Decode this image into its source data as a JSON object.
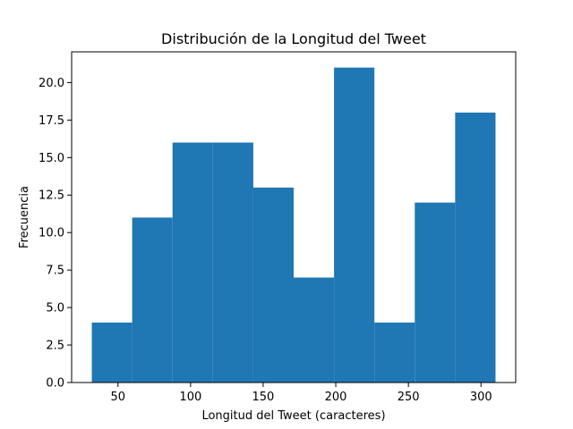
{
  "chart_data": {
    "type": "bar",
    "title": "Distribución de la Longitud del Tweet",
    "xlabel": "Longitud del Tweet (caracteres)",
    "ylabel": "Frecuencia",
    "bins": [
      {
        "start": 32.0,
        "end": 59.8,
        "count": 4
      },
      {
        "start": 59.8,
        "end": 87.6,
        "count": 11
      },
      {
        "start": 87.6,
        "end": 115.4,
        "count": 16
      },
      {
        "start": 115.4,
        "end": 143.2,
        "count": 16
      },
      {
        "start": 143.2,
        "end": 171.0,
        "count": 13
      },
      {
        "start": 171.0,
        "end": 198.8,
        "count": 7
      },
      {
        "start": 198.8,
        "end": 226.6,
        "count": 21
      },
      {
        "start": 226.6,
        "end": 254.4,
        "count": 4
      },
      {
        "start": 254.4,
        "end": 282.2,
        "count": 12
      },
      {
        "start": 282.2,
        "end": 310.0,
        "count": 18
      }
    ],
    "xlim": [
      18.1,
      323.9
    ],
    "ylim": [
      0,
      22.05
    ],
    "x_ticks": [
      {
        "value": 50,
        "label": "50"
      },
      {
        "value": 100,
        "label": "100"
      },
      {
        "value": 150,
        "label": "150"
      },
      {
        "value": 200,
        "label": "200"
      },
      {
        "value": 250,
        "label": "250"
      },
      {
        "value": 300,
        "label": "300"
      }
    ],
    "y_ticks": [
      {
        "value": 0,
        "label": "0.0"
      },
      {
        "value": 2.5,
        "label": "2.5"
      },
      {
        "value": 5,
        "label": "5.0"
      },
      {
        "value": 7.5,
        "label": "7.5"
      },
      {
        "value": 10,
        "label": "10.0"
      },
      {
        "value": 12.5,
        "label": "12.5"
      },
      {
        "value": 15,
        "label": "15.0"
      },
      {
        "value": 17.5,
        "label": "17.5"
      },
      {
        "value": 20,
        "label": "20.0"
      }
    ],
    "bar_color": "#1f77b4",
    "grid": false,
    "legend": "none"
  }
}
